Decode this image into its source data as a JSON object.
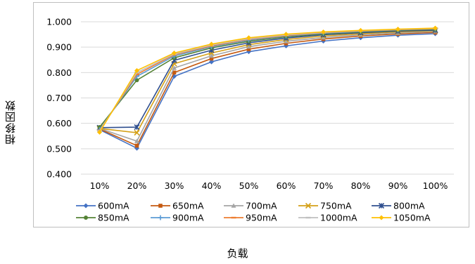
{
  "chart_data": {
    "type": "line",
    "xlabel": "负载",
    "ylabel": "相移因数",
    "title": "",
    "x": [
      "10%",
      "20%",
      "30%",
      "40%",
      "50%",
      "60%",
      "70%",
      "80%",
      "90%",
      "100%"
    ],
    "ylim": [
      0.4,
      1.0
    ],
    "yticks": [
      "0.400",
      "0.500",
      "0.600",
      "0.700",
      "0.800",
      "0.900",
      "1.000"
    ],
    "grid": true,
    "legend": "bottom",
    "series": [
      {
        "name": "600mA",
        "color": "#4472C4",
        "marker": "diamond",
        "values": [
          0.575,
          0.502,
          0.785,
          0.842,
          0.882,
          0.905,
          0.924,
          0.937,
          0.947,
          0.953
        ]
      },
      {
        "name": "650mA",
        "color": "#C55A11",
        "marker": "square",
        "values": [
          0.578,
          0.512,
          0.8,
          0.855,
          0.892,
          0.915,
          0.932,
          0.944,
          0.952,
          0.958
        ]
      },
      {
        "name": "700mA",
        "color": "#A5A5A5",
        "marker": "triangle",
        "values": [
          0.58,
          0.53,
          0.818,
          0.866,
          0.902,
          0.923,
          0.938,
          0.949,
          0.956,
          0.962
        ]
      },
      {
        "name": "750mA",
        "color": "#D4A017",
        "marker": "x",
        "values": [
          0.58,
          0.563,
          0.835,
          0.877,
          0.91,
          0.93,
          0.944,
          0.953,
          0.96,
          0.965
        ]
      },
      {
        "name": "800mA",
        "color": "#2F4F8F",
        "marker": "star",
        "values": [
          0.583,
          0.585,
          0.848,
          0.888,
          0.917,
          0.936,
          0.949,
          0.957,
          0.963,
          0.967
        ]
      },
      {
        "name": "850mA",
        "color": "#548235",
        "marker": "circle",
        "values": [
          0.585,
          0.77,
          0.858,
          0.897,
          0.923,
          0.941,
          0.952,
          0.96,
          0.966,
          0.97
        ]
      },
      {
        "name": "900mA",
        "color": "#5B9BD5",
        "marker": "plus",
        "values": [
          0.575,
          0.785,
          0.865,
          0.902,
          0.928,
          0.944,
          0.955,
          0.962,
          0.968,
          0.972
        ]
      },
      {
        "name": "950mA",
        "color": "#ED7D31",
        "marker": "dash",
        "values": [
          0.572,
          0.793,
          0.87,
          0.905,
          0.931,
          0.946,
          0.957,
          0.964,
          0.969,
          0.973
        ]
      },
      {
        "name": "1000mA",
        "color": "#BFBFBF",
        "marker": "dash",
        "values": [
          0.57,
          0.8,
          0.873,
          0.908,
          0.933,
          0.948,
          0.958,
          0.965,
          0.97,
          0.974
        ]
      },
      {
        "name": "1050mA",
        "color": "#FFC000",
        "marker": "diamond",
        "values": [
          0.565,
          0.808,
          0.877,
          0.912,
          0.937,
          0.951,
          0.96,
          0.966,
          0.971,
          0.975
        ]
      }
    ]
  }
}
